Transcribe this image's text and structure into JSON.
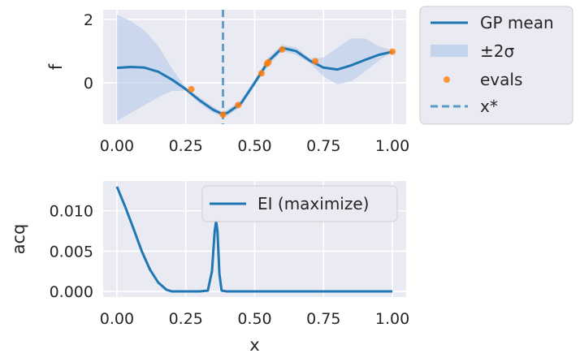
{
  "colors": {
    "axes_bg": "#eaeaf2",
    "grid": "#ffffff",
    "mean_line": "#1f77b4",
    "band": "#aec7e8",
    "evals": "#ff7f0e",
    "xstar": "#1f77b4",
    "text": "#262626"
  },
  "chart_data": [
    {
      "type": "line",
      "ylabel": "f",
      "xlim": [
        -0.05,
        1.05
      ],
      "ylim": [
        -1.3,
        2.3
      ],
      "xticks": [
        0.0,
        0.25,
        0.5,
        0.75,
        1.0
      ],
      "xtick_labels": [
        "0.00",
        "0.25",
        "0.50",
        "0.75",
        "1.00"
      ],
      "yticks": [
        0,
        2
      ],
      "ytick_labels": [
        "0",
        "2"
      ],
      "grid": true,
      "legend": {
        "placement": "outside right, top",
        "entries": [
          "GP mean",
          "±2σ",
          "evals",
          "x*"
        ]
      },
      "x": [
        0.0,
        0.05,
        0.1,
        0.15,
        0.2,
        0.25,
        0.3,
        0.35,
        0.38,
        0.4,
        0.45,
        0.5,
        0.55,
        0.6,
        0.65,
        0.7,
        0.75,
        0.8,
        0.85,
        0.9,
        0.95,
        1.0
      ],
      "series": [
        {
          "name": "GP mean",
          "values": [
            0.47,
            0.5,
            0.48,
            0.35,
            0.1,
            -0.2,
            -0.55,
            -0.85,
            -0.97,
            -0.95,
            -0.65,
            0.0,
            0.68,
            1.1,
            1.0,
            0.7,
            0.48,
            0.42,
            0.55,
            0.72,
            0.88,
            0.98
          ]
        },
        {
          "name": "±2σ",
          "lower": [
            -1.2,
            -0.95,
            -0.7,
            -0.45,
            -0.25,
            -0.25,
            -0.65,
            -0.95,
            -1.05,
            -1.05,
            -0.75,
            -0.1,
            0.55,
            1.0,
            0.88,
            0.62,
            0.2,
            -0.05,
            0.05,
            0.35,
            0.7,
            0.95
          ],
          "upper": [
            2.15,
            1.95,
            1.65,
            1.15,
            0.45,
            -0.15,
            -0.45,
            -0.75,
            -0.9,
            -0.85,
            -0.55,
            0.1,
            0.8,
            1.2,
            1.12,
            0.78,
            0.8,
            1.1,
            1.4,
            1.4,
            1.15,
            1.02
          ]
        },
        {
          "name": "evals",
          "x": [
            0.27,
            0.385,
            0.44,
            0.525,
            0.545,
            0.55,
            0.6,
            0.72,
            1.0
          ],
          "y": [
            -0.2,
            -1.0,
            -0.7,
            0.3,
            0.6,
            0.65,
            1.05,
            0.68,
            0.98
          ]
        },
        {
          "name": "x*",
          "x": 0.385
        }
      ]
    },
    {
      "type": "line",
      "xlabel": "x",
      "ylabel": "acq",
      "xlim": [
        -0.05,
        1.05
      ],
      "ylim": [
        -0.0007,
        0.0137
      ],
      "xticks": [
        0.0,
        0.25,
        0.5,
        0.75,
        1.0
      ],
      "xtick_labels": [
        "0.00",
        "0.25",
        "0.50",
        "0.75",
        "1.00"
      ],
      "yticks": [
        0.0,
        0.005,
        0.01
      ],
      "ytick_labels": [
        "0.000",
        "0.005",
        "0.010"
      ],
      "grid": true,
      "legend": {
        "placement": "upper right",
        "entries": [
          "EI (maximize)"
        ]
      },
      "x": [
        0.0,
        0.03,
        0.06,
        0.09,
        0.12,
        0.15,
        0.18,
        0.2,
        0.25,
        0.3,
        0.33,
        0.345,
        0.355,
        0.36,
        0.365,
        0.372,
        0.38,
        0.4,
        0.5,
        0.6,
        0.7,
        0.8,
        0.9,
        1.0
      ],
      "series": [
        {
          "name": "EI (maximize)",
          "values": [
            0.013,
            0.0105,
            0.0078,
            0.005,
            0.0027,
            0.0011,
            0.0002,
            0.0,
            0.0,
            0.0,
            0.0001,
            0.0025,
            0.0075,
            0.0087,
            0.0075,
            0.0022,
            0.0001,
            0.0,
            0.0,
            0.0,
            0.0,
            0.0,
            0.0,
            0.0
          ]
        }
      ]
    }
  ]
}
